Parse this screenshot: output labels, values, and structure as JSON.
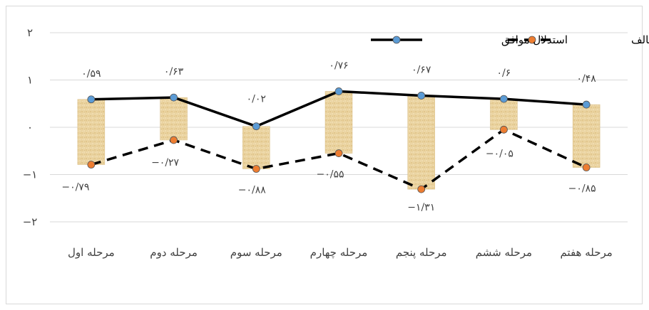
{
  "chart_data": {
    "type": "line",
    "categories": [
      "مرحله اول",
      "مرحله دوم",
      "مرحله سوم",
      "مرحله چهارم",
      "مرحله پنجم",
      "مرحله ششم",
      "مرحله هفتم"
    ],
    "series": [
      {
        "name": "استدلال موافق",
        "values": [
          0.59,
          0.63,
          0.02,
          0.76,
          0.67,
          0.6,
          0.48
        ],
        "labels": [
          "۰/۵۹",
          "۰/۶۳",
          "۰/۰۲",
          "۰/۷۶",
          "۰/۶۷",
          "۰/۶",
          "۰/۴۸"
        ],
        "color": "#000000",
        "marker_color": "#5b9bd5",
        "line_style": "solid"
      },
      {
        "name": "استدلال مخالف",
        "values": [
          -0.79,
          -0.27,
          -0.88,
          -0.55,
          -1.31,
          -0.05,
          -0.85
        ],
        "labels": [
          "−۰/۷۹",
          "−۰/۲۷",
          "−۰/۸۸",
          "−۰/۵۵",
          "−۱/۳۱",
          "−۰/۰۵",
          "−۰/۸۵"
        ],
        "color": "#000000",
        "marker_color": "#ed7d31",
        "line_style": "dashed"
      }
    ],
    "y_ticks": [
      {
        "value": 2,
        "label": "۲"
      },
      {
        "value": 1,
        "label": "۱"
      },
      {
        "value": 0,
        "label": "۰"
      },
      {
        "value": -1,
        "label": "−۱"
      },
      {
        "value": -2,
        "label": "−۲"
      }
    ],
    "ylim": [
      -2,
      2
    ],
    "gridlines": true,
    "range_bars": true,
    "bar_color": "#e8cf9a",
    "legend_position": "top-right",
    "title": "",
    "xlabel": "",
    "ylabel": ""
  }
}
